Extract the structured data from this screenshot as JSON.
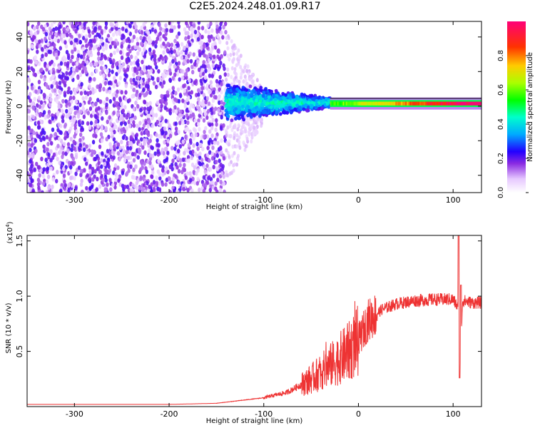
{
  "title": "C2E5.2024.248.01.09.R17",
  "chart_data": [
    {
      "type": "heatmap",
      "xlabel": "Height of straight line (km)",
      "ylabel": "Frequency (Hz)",
      "xlim": [
        -350,
        130
      ],
      "ylim": [
        -50,
        49
      ],
      "xticks": [
        -300,
        -200,
        -100,
        0,
        100
      ],
      "yticks": [
        -40,
        -20,
        0,
        20,
        40
      ],
      "colorbar": {
        "label": "Normalized spectral amplitude",
        "range": [
          0.0,
          1.0
        ],
        "ticks": [
          0.0,
          0.2,
          0.4,
          0.6,
          0.8
        ],
        "colormap": [
          "#ffffff",
          "#e6c8ff",
          "#8a2be2",
          "#2200ff",
          "#00aaff",
          "#00ffcc",
          "#00ff00",
          "#aaff00",
          "#ffcc00",
          "#ff3300",
          "#ff0077"
        ]
      },
      "regions": [
        {
          "x_range": [
            -350,
            -140
          ],
          "f_range": [
            -49,
            49
          ],
          "amplitude": "0.1-0.25 broadband"
        },
        {
          "x_range": [
            -140,
            -30
          ],
          "f_range": [
            -12,
            12
          ],
          "amplitude": "0.2-0.6"
        },
        {
          "x_range": [
            -30,
            130
          ],
          "f_range": [
            -1,
            4
          ],
          "amplitude": "0.6-1.0 narrow band"
        }
      ]
    },
    {
      "type": "line",
      "xlabel": "Height of straight line (km)",
      "ylabel": "SNR (10 * v/v)",
      "exponent_label": "(x10",
      "exponent_power": "4",
      "exponent_close": ")",
      "xlim": [
        -350,
        130
      ],
      "ylim": [
        0,
        1.55
      ],
      "xticks": [
        -300,
        -200,
        -100,
        0,
        100
      ],
      "yticks": [
        "0.5",
        "1.0",
        "1.5"
      ],
      "color": "#ee3333",
      "x": [
        -350,
        -200,
        -150,
        -100,
        -75,
        -50,
        -25,
        -10,
        0,
        10,
        25,
        40,
        60,
        80,
        100,
        105,
        107,
        110,
        120,
        130
      ],
      "y": [
        0.02,
        0.02,
        0.03,
        0.08,
        0.13,
        0.25,
        0.4,
        0.5,
        0.6,
        0.78,
        0.88,
        0.93,
        0.96,
        0.97,
        0.97,
        0.9,
        0.3,
        0.96,
        0.94,
        0.94
      ]
    }
  ]
}
